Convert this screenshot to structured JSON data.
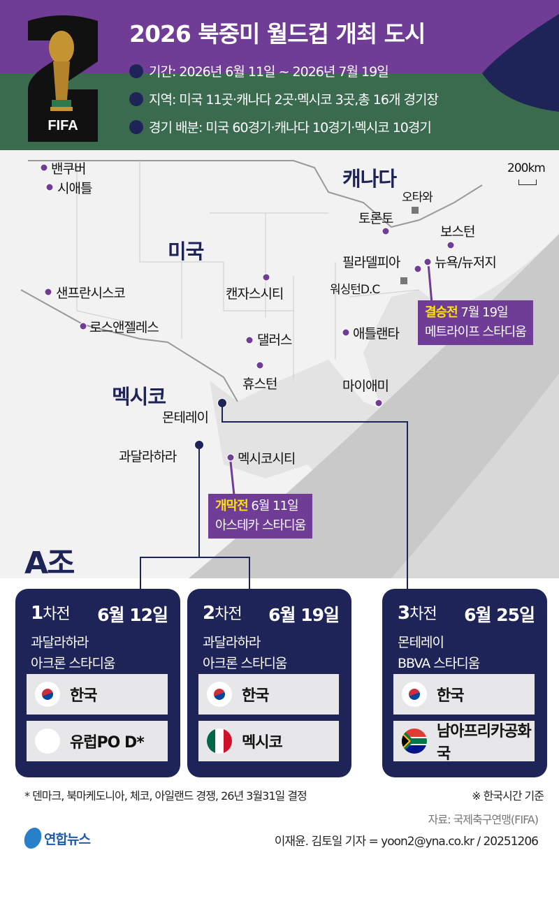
{
  "header": {
    "title": "2026 북중미 월드컵 개최 도시",
    "logo_text": "FIFA",
    "bullets": [
      "기간: 2026년 6월 11일 ~ 2026년 7월 19일",
      "지역: 미국 11곳·캐나다 2곳·멕시코 3곳,총 16개 경기장",
      "경기 배분: 미국 60경기·캐나다 10경기·멕시코 10경기"
    ],
    "colors": {
      "purple": "#6f3c96",
      "green": "#3a6b4e",
      "navy": "#1f2458"
    }
  },
  "map": {
    "countries": {
      "canada": "캐나다",
      "usa": "미국",
      "mexico": "멕시코"
    },
    "scale": "200km",
    "cities": {
      "vancouver": "밴쿠버",
      "seattle": "시애틀",
      "sanfrancisco": "샌프란시스코",
      "losangeles": "로스앤젤레스",
      "kansascity": "캔자스시티",
      "dallas": "댈러스",
      "houston": "휴스턴",
      "atlanta": "애틀랜타",
      "miami": "마이애미",
      "toronto": "토론토",
      "boston": "보스턴",
      "newyork": "뉴욕/뉴저지",
      "philadelphia": "필라델피아",
      "monterrey": "몬테레이",
      "guadalajara": "과달라하라",
      "mexicocity": "멕시코시티"
    },
    "capitals": {
      "ottawa": "오타와",
      "washington": "워싱턴D.C"
    },
    "final": {
      "label": "결승전",
      "date": "7월 19일",
      "stadium": "메트라이프 스타디움"
    },
    "opening": {
      "label": "개막전",
      "date": "6월 11일",
      "stadium": "아스테카 스타디움"
    }
  },
  "group": {
    "title": "A조",
    "matches": [
      {
        "round_num": "1",
        "round": "차전",
        "date": "6월 12일",
        "city": "과달라하라",
        "stadium": "아크론 스타디움",
        "teams": [
          {
            "name": "한국",
            "flag": "korea-flag"
          },
          {
            "name": "유럽PO D*",
            "flag": "blank-flag"
          }
        ]
      },
      {
        "round_num": "2",
        "round": "차전",
        "date": "6월 19일",
        "city": "과달라하라",
        "stadium": "아크론 스타디움",
        "teams": [
          {
            "name": "한국",
            "flag": "korea-flag"
          },
          {
            "name": "멕시코",
            "flag": "mexico-flag"
          }
        ]
      },
      {
        "round_num": "3",
        "round": "차전",
        "date": "6월 25일",
        "city": "몬테레이",
        "stadium": "BBVA 스타디움",
        "teams": [
          {
            "name": "한국",
            "flag": "korea-flag"
          },
          {
            "name": "남아프리카공화국",
            "flag": "south-africa-flag"
          }
        ]
      }
    ]
  },
  "footer": {
    "note": "* 덴마크, 북마케도니아, 체코, 아일랜드 경쟁, 26년 3월31일 결정",
    "time_note": "※ 한국시간 기준",
    "source": "자료: 국제축구연맹(FIFA)",
    "credit": "이재윤. 김토일 기자 = yoon2@yna.co.kr / 20251206",
    "agency_logo": "연합뉴스"
  }
}
